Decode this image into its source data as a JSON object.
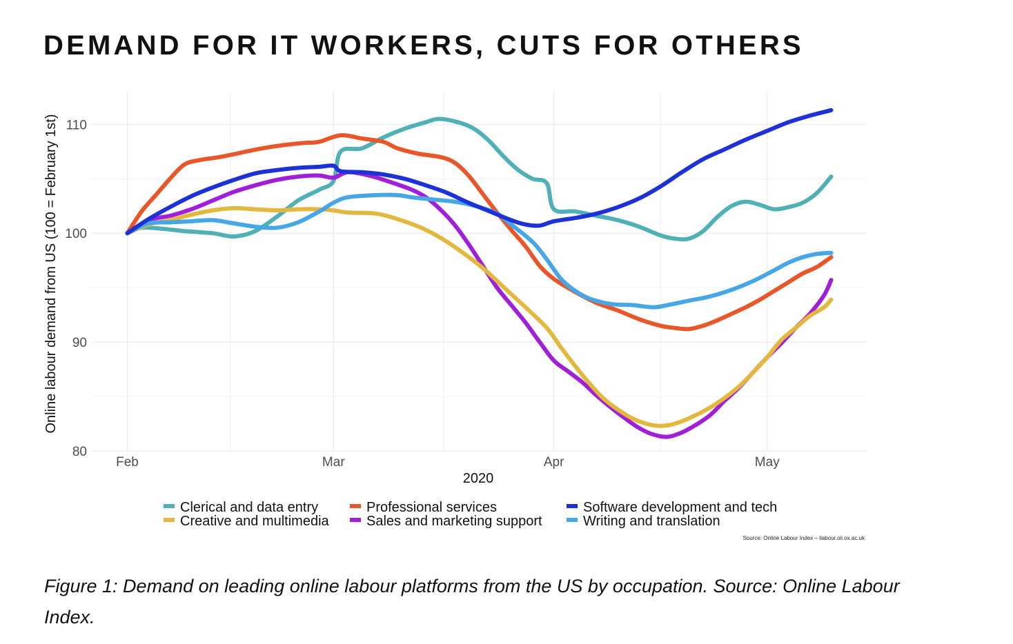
{
  "header": {
    "title": "DEMAND FOR IT WORKERS, CUTS FOR OTHERS"
  },
  "caption": {
    "text": "Figure 1: Demand on leading online labour platforms from the US by occupation. Source: Online Labour Index."
  },
  "colors": {
    "clerical": "#4fb1b5",
    "professional": "#e8572a",
    "software": "#1d32d6",
    "creative": "#e3b83e",
    "sales": "#a21fd8",
    "writing": "#47a6e6",
    "gridline": "#ebebeb"
  },
  "chart_data": {
    "type": "line",
    "title": "",
    "xlabel": "2020",
    "ylabel": "Online labour demand from US (100 = February 1st)",
    "x_ticks": [
      {
        "label": "Feb",
        "day": 0
      },
      {
        "label": "Mar",
        "day": 29
      },
      {
        "label": "Apr",
        "day": 60
      },
      {
        "label": "May",
        "day": 90
      }
    ],
    "y_ticks": [
      80,
      90,
      100,
      110
    ],
    "xlim": [
      -5,
      104
    ],
    "ylim": [
      80,
      113
    ],
    "x_unit": "days since February 1, 2020",
    "grid": true,
    "legend_position": "bottom",
    "source_note": "Source: Online Labour Index – ilabour.oii.ox.ac.uk",
    "series": [
      {
        "name": "Clerical and data entry",
        "color_key": "clerical",
        "points": [
          [
            0,
            100
          ],
          [
            2,
            100.5
          ],
          [
            5,
            100.4
          ],
          [
            8,
            100.2
          ],
          [
            12,
            100
          ],
          [
            15,
            99.7
          ],
          [
            18,
            100.2
          ],
          [
            21,
            101.5
          ],
          [
            24,
            103
          ],
          [
            27,
            104
          ],
          [
            29,
            104.8
          ],
          [
            30,
            107.5
          ],
          [
            33,
            107.8
          ],
          [
            36,
            108.8
          ],
          [
            39,
            109.6
          ],
          [
            42,
            110.2
          ],
          [
            44,
            110.5
          ],
          [
            47,
            110.1
          ],
          [
            49,
            109.5
          ],
          [
            51,
            108.4
          ],
          [
            53,
            107
          ],
          [
            55,
            105.8
          ],
          [
            57,
            105
          ],
          [
            59,
            104.6
          ],
          [
            60,
            102.2
          ],
          [
            63,
            102
          ],
          [
            66,
            101.6
          ],
          [
            69,
            101.2
          ],
          [
            72,
            100.6
          ],
          [
            75,
            99.8
          ],
          [
            77,
            99.5
          ],
          [
            79,
            99.5
          ],
          [
            81,
            100.2
          ],
          [
            83,
            101.5
          ],
          [
            85,
            102.5
          ],
          [
            87,
            102.9
          ],
          [
            89,
            102.6
          ],
          [
            91,
            102.2
          ],
          [
            93,
            102.4
          ],
          [
            95,
            102.8
          ],
          [
            97,
            103.7
          ],
          [
            99,
            105.2
          ]
        ]
      },
      {
        "name": "Professional services",
        "color_key": "professional",
        "points": [
          [
            0,
            100
          ],
          [
            2,
            102
          ],
          [
            4,
            103.5
          ],
          [
            6,
            105
          ],
          [
            8,
            106.3
          ],
          [
            10,
            106.7
          ],
          [
            13,
            107
          ],
          [
            16,
            107.4
          ],
          [
            19,
            107.8
          ],
          [
            22,
            108.1
          ],
          [
            25,
            108.3
          ],
          [
            27,
            108.4
          ],
          [
            30,
            109
          ],
          [
            33,
            108.7
          ],
          [
            36,
            108.4
          ],
          [
            38,
            107.8
          ],
          [
            41,
            107.3
          ],
          [
            44,
            107
          ],
          [
            46,
            106.5
          ],
          [
            48,
            105.3
          ],
          [
            50,
            103.6
          ],
          [
            52,
            101.9
          ],
          [
            54,
            100.3
          ],
          [
            56,
            98.8
          ],
          [
            58,
            97
          ],
          [
            60,
            95.8
          ],
          [
            63,
            94.6
          ],
          [
            66,
            93.6
          ],
          [
            69,
            92.9
          ],
          [
            72,
            92.1
          ],
          [
            75,
            91.5
          ],
          [
            77,
            91.3
          ],
          [
            79,
            91.2
          ],
          [
            81,
            91.5
          ],
          [
            83,
            92
          ],
          [
            85,
            92.6
          ],
          [
            87,
            93.2
          ],
          [
            89,
            93.9
          ],
          [
            91,
            94.7
          ],
          [
            93,
            95.5
          ],
          [
            95,
            96.3
          ],
          [
            97,
            96.9
          ],
          [
            99,
            97.8
          ]
        ]
      },
      {
        "name": "Software development and tech",
        "color_key": "software",
        "points": [
          [
            0,
            100
          ],
          [
            3,
            101.3
          ],
          [
            6,
            102.4
          ],
          [
            9,
            103.4
          ],
          [
            12,
            104.2
          ],
          [
            15,
            104.9
          ],
          [
            18,
            105.5
          ],
          [
            21,
            105.8
          ],
          [
            24,
            106
          ],
          [
            27,
            106.1
          ],
          [
            29,
            106.2
          ],
          [
            30,
            105.7
          ],
          [
            33,
            105.6
          ],
          [
            36,
            105.4
          ],
          [
            39,
            105
          ],
          [
            42,
            104.4
          ],
          [
            45,
            103.7
          ],
          [
            48,
            102.8
          ],
          [
            51,
            102
          ],
          [
            54,
            101.2
          ],
          [
            56,
            100.8
          ],
          [
            58,
            100.7
          ],
          [
            60,
            101.1
          ],
          [
            63,
            101.4
          ],
          [
            66,
            101.8
          ],
          [
            69,
            102.4
          ],
          [
            72,
            103.2
          ],
          [
            75,
            104.3
          ],
          [
            78,
            105.6
          ],
          [
            81,
            106.8
          ],
          [
            84,
            107.7
          ],
          [
            87,
            108.6
          ],
          [
            90,
            109.4
          ],
          [
            93,
            110.2
          ],
          [
            96,
            110.8
          ],
          [
            99,
            111.3
          ]
        ]
      },
      {
        "name": "Creative and multimedia",
        "color_key": "creative",
        "points": [
          [
            0,
            100
          ],
          [
            3,
            100.8
          ],
          [
            6,
            101.2
          ],
          [
            9,
            101.7
          ],
          [
            12,
            102.1
          ],
          [
            15,
            102.3
          ],
          [
            18,
            102.2
          ],
          [
            21,
            102.1
          ],
          [
            24,
            102.2
          ],
          [
            27,
            102.2
          ],
          [
            29,
            102.1
          ],
          [
            31,
            101.9
          ],
          [
            35,
            101.8
          ],
          [
            38,
            101.3
          ],
          [
            41,
            100.6
          ],
          [
            44,
            99.6
          ],
          [
            47,
            98.3
          ],
          [
            50,
            96.8
          ],
          [
            53,
            95
          ],
          [
            56,
            93.2
          ],
          [
            59,
            91.3
          ],
          [
            61,
            89.5
          ],
          [
            63,
            87.8
          ],
          [
            65,
            86.2
          ],
          [
            67,
            84.8
          ],
          [
            69,
            83.8
          ],
          [
            71,
            83
          ],
          [
            73,
            82.5
          ],
          [
            75,
            82.3
          ],
          [
            77,
            82.5
          ],
          [
            80,
            83.3
          ],
          [
            83,
            84.4
          ],
          [
            86,
            85.9
          ],
          [
            88,
            87.2
          ],
          [
            90,
            88.6
          ],
          [
            92,
            90.2
          ],
          [
            94,
            91.3
          ],
          [
            96,
            92.4
          ],
          [
            98,
            93.2
          ],
          [
            99,
            93.9
          ]
        ]
      },
      {
        "name": "Sales and marketing support",
        "color_key": "sales",
        "points": [
          [
            0,
            100
          ],
          [
            3,
            101.2
          ],
          [
            6,
            101.6
          ],
          [
            9,
            102.2
          ],
          [
            12,
            103
          ],
          [
            15,
            103.8
          ],
          [
            18,
            104.4
          ],
          [
            21,
            104.9
          ],
          [
            24,
            105.2
          ],
          [
            27,
            105.3
          ],
          [
            29,
            105.1
          ],
          [
            31,
            105.6
          ],
          [
            34,
            105.3
          ],
          [
            37,
            104.7
          ],
          [
            40,
            104
          ],
          [
            42,
            103.3
          ],
          [
            44,
            102.2
          ],
          [
            46,
            100.8
          ],
          [
            48,
            99
          ],
          [
            50,
            97
          ],
          [
            52,
            95
          ],
          [
            54,
            93.4
          ],
          [
            56,
            91.8
          ],
          [
            58,
            90
          ],
          [
            60,
            88.3
          ],
          [
            62,
            87.3
          ],
          [
            64,
            86.3
          ],
          [
            66,
            85.1
          ],
          [
            68,
            84
          ],
          [
            70,
            83
          ],
          [
            72,
            82.1
          ],
          [
            74,
            81.5
          ],
          [
            76,
            81.3
          ],
          [
            78,
            81.7
          ],
          [
            80,
            82.4
          ],
          [
            82,
            83.3
          ],
          [
            84,
            84.6
          ],
          [
            86,
            85.8
          ],
          [
            88,
            87.2
          ],
          [
            90,
            88.6
          ],
          [
            92,
            89.9
          ],
          [
            94,
            91.3
          ],
          [
            96,
            92.6
          ],
          [
            98,
            94.3
          ],
          [
            99,
            95.7
          ]
        ]
      },
      {
        "name": "Writing and translation",
        "color_key": "writing",
        "points": [
          [
            0,
            100
          ],
          [
            3,
            100.9
          ],
          [
            6,
            101
          ],
          [
            9,
            101.1
          ],
          [
            12,
            101.2
          ],
          [
            15,
            100.9
          ],
          [
            18,
            100.6
          ],
          [
            21,
            100.5
          ],
          [
            24,
            101
          ],
          [
            27,
            102
          ],
          [
            29,
            102.8
          ],
          [
            31,
            103.3
          ],
          [
            35,
            103.5
          ],
          [
            38,
            103.5
          ],
          [
            40,
            103.3
          ],
          [
            43,
            103.1
          ],
          [
            46,
            102.9
          ],
          [
            49,
            102.5
          ],
          [
            52,
            101.8
          ],
          [
            54,
            100.8
          ],
          [
            57,
            99.2
          ],
          [
            59,
            97.6
          ],
          [
            61,
            95.8
          ],
          [
            63,
            94.7
          ],
          [
            65,
            94
          ],
          [
            68,
            93.5
          ],
          [
            71,
            93.4
          ],
          [
            74,
            93.2
          ],
          [
            76,
            93.4
          ],
          [
            79,
            93.8
          ],
          [
            82,
            94.2
          ],
          [
            85,
            94.8
          ],
          [
            88,
            95.6
          ],
          [
            91,
            96.6
          ],
          [
            93,
            97.3
          ],
          [
            95,
            97.8
          ],
          [
            97,
            98.1
          ],
          [
            99,
            98.2
          ]
        ]
      }
    ]
  }
}
